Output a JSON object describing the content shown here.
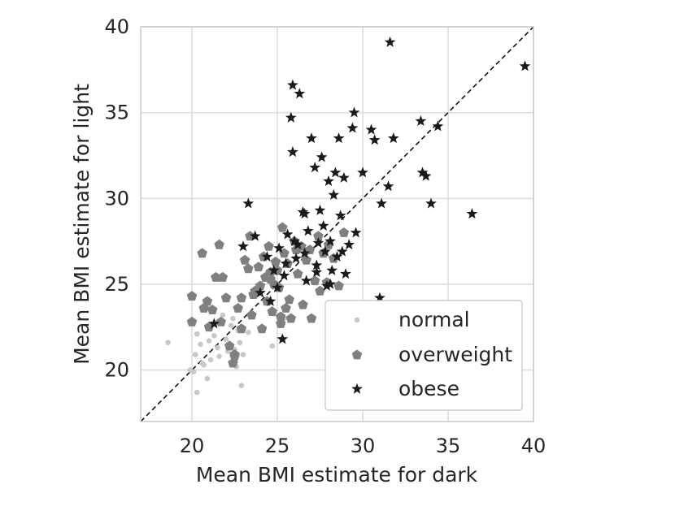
{
  "chart_data": {
    "type": "scatter",
    "title": "",
    "xlabel": "Mean BMI estimate for dark",
    "ylabel": "Mean BMI estimate for light",
    "xlim": [
      17,
      40
    ],
    "ylim": [
      17,
      40
    ],
    "xticks": [
      "20",
      "25",
      "30",
      "35",
      "40"
    ],
    "yticks": [
      "20",
      "25",
      "30",
      "35",
      "40"
    ],
    "grid": true,
    "legend_position": "lower-right",
    "reference_line": "y = x (dashed)",
    "colors": {
      "normal": "#c8c8c8",
      "overweight": "#808080",
      "obese": "#1a1a1a",
      "grid": "#dddddd",
      "axes": "#cccccc"
    },
    "series": [
      {
        "name": "normal",
        "marker": "circle",
        "x": [
          18.6,
          19.9,
          20.2,
          20.1,
          20.3,
          20.5,
          20.7,
          20.9,
          21.0,
          21.1,
          21.3,
          21.5,
          21.6,
          21.8,
          22.0,
          22.1,
          22.3,
          22.5,
          22.6,
          22.8,
          23.0,
          22.9,
          22.7,
          24.0,
          24.7,
          20.3,
          21.2,
          22.4,
          23.3,
          25.4,
          24.6,
          20.6
        ],
        "y": [
          21.6,
          20.0,
          20.9,
          19.9,
          18.7,
          21.5,
          20.3,
          19.5,
          21.7,
          20.6,
          22.0,
          21.3,
          20.8,
          23.2,
          21.8,
          21.1,
          22.6,
          21.2,
          20.2,
          21.6,
          20.9,
          19.1,
          22.3,
          22.4,
          21.4,
          22.1,
          22.7,
          23.0,
          22.2,
          23.0,
          24.0,
          20.4
        ]
      },
      {
        "name": "overweight",
        "marker": "pentagon",
        "x": [
          20.0,
          20.0,
          20.6,
          20.7,
          20.9,
          21.0,
          21.2,
          21.4,
          21.6,
          21.7,
          22.0,
          22.2,
          22.4,
          22.5,
          22.7,
          22.9,
          23.1,
          23.3,
          23.4,
          23.5,
          23.7,
          23.9,
          24.0,
          24.1,
          24.2,
          24.3,
          24.4,
          24.5,
          24.6,
          24.7,
          24.8,
          24.9,
          25.0,
          25.1,
          25.2,
          25.3,
          25.4,
          25.5,
          25.6,
          25.7,
          25.8,
          26.0,
          26.2,
          26.4,
          26.5,
          26.7,
          26.9,
          27.0,
          27.2,
          27.4,
          27.5,
          27.7,
          27.9,
          28.0,
          28.3,
          28.6,
          28.9,
          26.1,
          25.2,
          24.6,
          23.6,
          22.5,
          21.8,
          22.9
        ],
        "y": [
          22.8,
          24.3,
          26.8,
          23.6,
          24.0,
          22.5,
          23.5,
          25.4,
          27.3,
          22.8,
          24.2,
          21.4,
          20.4,
          20.8,
          23.6,
          22.4,
          26.4,
          25.9,
          27.8,
          23.2,
          24.6,
          26.0,
          24.9,
          22.4,
          26.6,
          25.4,
          24.0,
          27.2,
          25.7,
          23.4,
          25.0,
          26.3,
          25.8,
          24.8,
          22.7,
          28.3,
          26.8,
          23.6,
          26.2,
          24.1,
          23.0,
          27.5,
          25.6,
          27.2,
          23.8,
          26.4,
          27.0,
          23.0,
          25.2,
          27.8,
          24.6,
          26.8,
          25.1,
          27.3,
          26.5,
          24.9,
          28.0,
          27.0,
          23.1,
          25.3,
          24.4,
          20.9,
          25.4,
          24.2
        ]
      },
      {
        "name": "obese",
        "marker": "star",
        "x": [
          21.3,
          23.0,
          23.3,
          23.7,
          24.0,
          24.4,
          24.6,
          24.8,
          25.0,
          25.1,
          25.3,
          25.5,
          25.6,
          25.8,
          25.9,
          25.9,
          26.0,
          26.1,
          26.2,
          26.3,
          26.5,
          26.6,
          26.7,
          26.8,
          27.0,
          27.2,
          27.3,
          27.4,
          27.5,
          27.6,
          27.7,
          27.8,
          27.9,
          28.0,
          28.1,
          28.2,
          28.3,
          28.4,
          28.5,
          28.6,
          28.7,
          28.8,
          28.9,
          29.0,
          29.2,
          29.4,
          29.5,
          29.6,
          30.0,
          30.5,
          30.7,
          31.0,
          31.1,
          31.5,
          31.6,
          31.8,
          33.4,
          33.5,
          33.7,
          34.0,
          34.4,
          36.4,
          39.5,
          25.4,
          26.6,
          27.3,
          28.1
        ],
        "y": [
          22.7,
          27.2,
          29.7,
          27.8,
          24.5,
          26.6,
          24.0,
          25.8,
          24.8,
          27.1,
          21.8,
          26.2,
          27.9,
          34.7,
          32.7,
          36.6,
          27.5,
          26.5,
          27.3,
          36.1,
          29.2,
          26.8,
          25.2,
          28.1,
          33.5,
          31.8,
          26.1,
          27.4,
          29.3,
          32.4,
          28.4,
          26.9,
          24.9,
          31.0,
          27.5,
          25.8,
          30.2,
          31.5,
          26.6,
          33.5,
          29.0,
          26.9,
          31.2,
          25.6,
          27.3,
          34.1,
          35.0,
          28.0,
          31.5,
          34.0,
          33.4,
          24.2,
          29.7,
          30.7,
          39.1,
          33.5,
          34.5,
          31.5,
          31.3,
          29.7,
          34.2,
          29.1,
          37.7,
          25.5,
          29.1,
          25.7,
          25.0
        ]
      }
    ]
  }
}
